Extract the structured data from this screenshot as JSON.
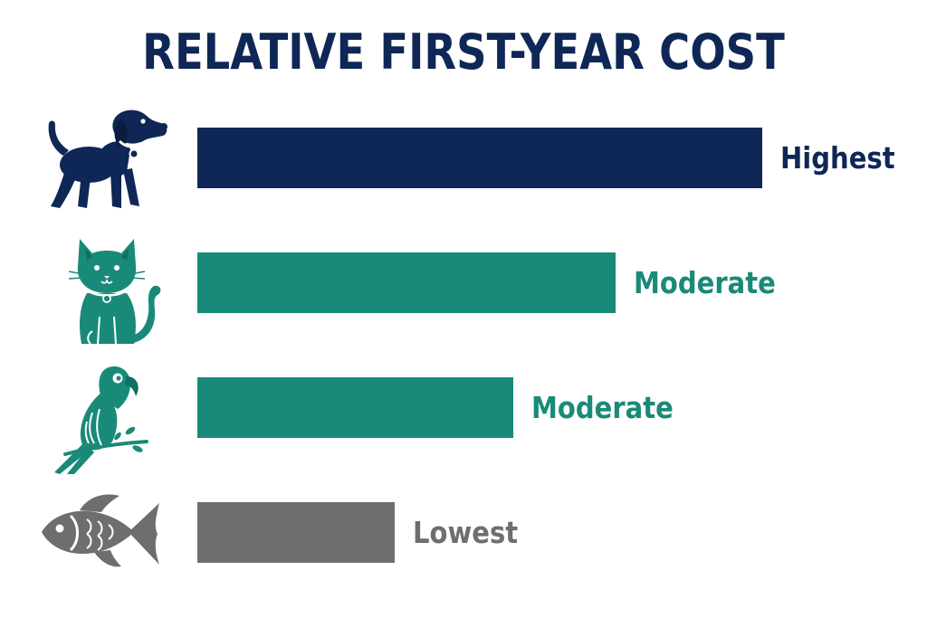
{
  "chart_data": {
    "type": "bar",
    "orientation": "horizontal",
    "title": "RELATIVE FIRST-YEAR COST",
    "categories": [
      "dog",
      "cat",
      "parrot",
      "fish"
    ],
    "values": [
      100,
      74,
      56,
      35
    ],
    "data_labels": [
      "Highest",
      "Moderate",
      "Moderate",
      "Lowest"
    ],
    "xlim": [
      0,
      100
    ],
    "grid": false,
    "legend": "none",
    "axes_visible": false
  },
  "colors": {
    "title": "#0f2756",
    "bars": [
      "#0f2756",
      "#198a78",
      "#198a78",
      "#6c6e70"
    ]
  },
  "icons": [
    "dog-icon",
    "cat-icon",
    "parrot-icon",
    "fish-icon"
  ]
}
